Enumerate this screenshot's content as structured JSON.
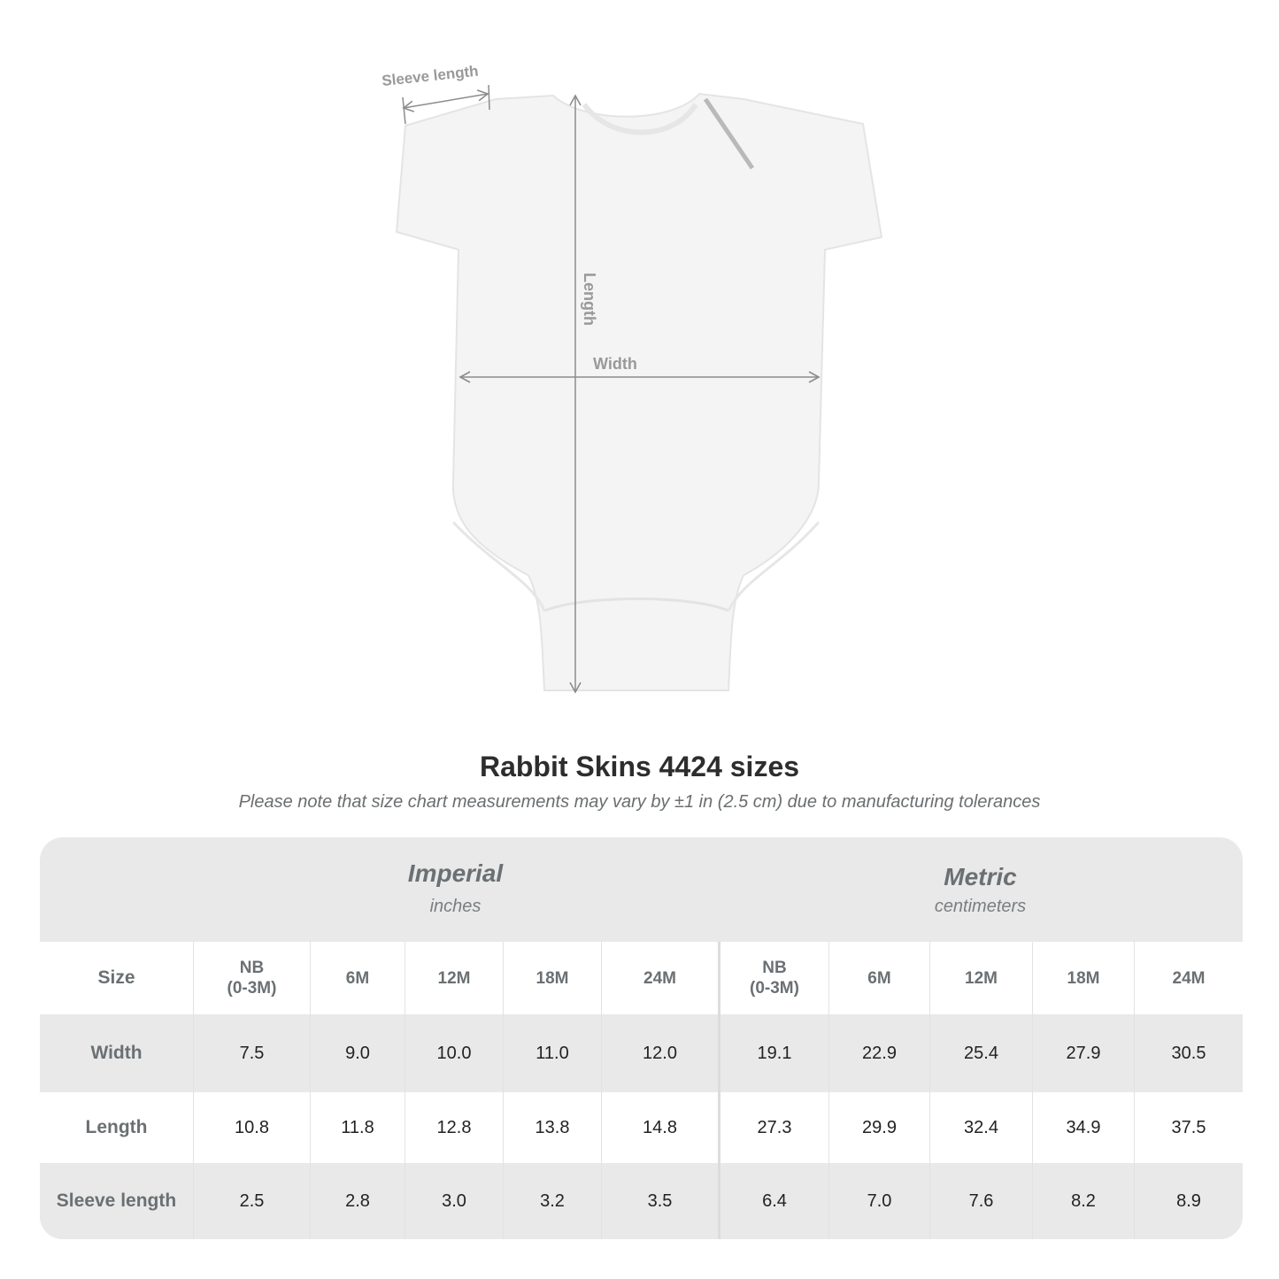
{
  "diagram": {
    "labels": {
      "sleeve_length": "Sleeve length",
      "length": "Length",
      "width": "Width"
    }
  },
  "title": "Rabbit Skins 4424 sizes",
  "subtitle": "Please note that size chart measurements may vary by ±1 in (2.5 cm) due to manufacturing tolerances",
  "table": {
    "imperial": {
      "label": "Imperial",
      "unit": "inches"
    },
    "metric": {
      "label": "Metric",
      "unit": "centimeters"
    },
    "size_label": "Size",
    "sizes": [
      "NB\n(0-3M)",
      "6M",
      "12M",
      "18M",
      "24M"
    ],
    "rows": [
      {
        "label": "Width",
        "imperial": [
          "7.5",
          "9.0",
          "10.0",
          "11.0",
          "12.0"
        ],
        "metric": [
          "19.1",
          "22.9",
          "25.4",
          "27.9",
          "30.5"
        ]
      },
      {
        "label": "Length",
        "imperial": [
          "10.8",
          "11.8",
          "12.8",
          "13.8",
          "14.8"
        ],
        "metric": [
          "27.3",
          "29.9",
          "32.4",
          "34.9",
          "37.5"
        ]
      },
      {
        "label": "Sleeve length",
        "imperial": [
          "2.5",
          "2.8",
          "3.0",
          "3.2",
          "3.5"
        ],
        "metric": [
          "6.4",
          "7.0",
          "7.6",
          "8.2",
          "8.9"
        ]
      }
    ]
  },
  "colors": {
    "label_gray": "#6a7073",
    "band_gray": "#e9e9e9",
    "measure_line": "#8c8c8c"
  }
}
